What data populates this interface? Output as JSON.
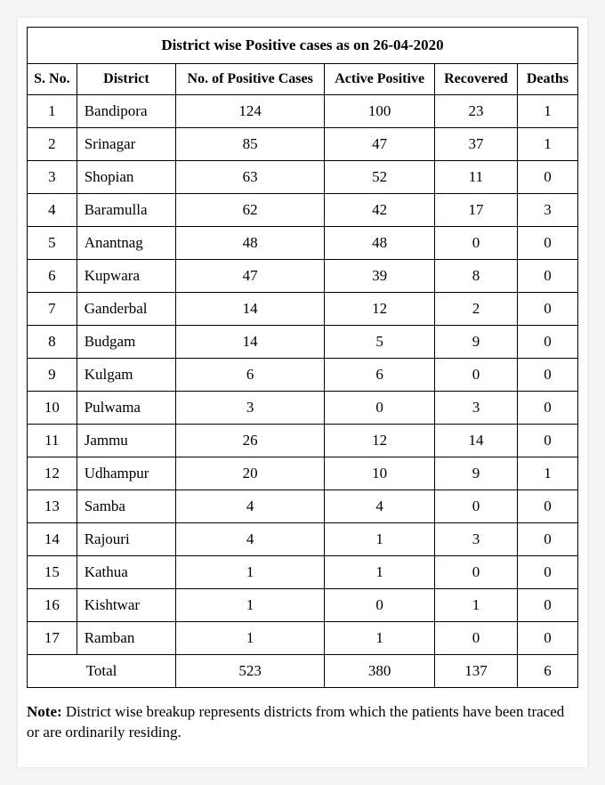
{
  "table": {
    "type": "table",
    "title": "District wise Positive cases as on 26-04-2020",
    "columns": [
      "S. No.",
      "District",
      "No. of Positive Cases",
      "Active Positive",
      "Recovered",
      "Deaths"
    ],
    "column_keys": [
      "sno",
      "district",
      "positive",
      "active",
      "recovered",
      "deaths"
    ],
    "column_widths_pct": [
      9,
      18,
      27,
      20,
      15,
      11
    ],
    "column_align": [
      "center",
      "left",
      "center",
      "center",
      "center",
      "center"
    ],
    "header_fontsize": 16,
    "title_fontsize": 17,
    "cell_fontsize": 17,
    "border_color": "#000000",
    "background_color": "#ffffff",
    "text_color": "#000000",
    "rows": [
      {
        "sno": "1",
        "district": "Bandipora",
        "positive": "124",
        "active": "100",
        "recovered": "23",
        "deaths": "1"
      },
      {
        "sno": "2",
        "district": "Srinagar",
        "positive": "85",
        "active": "47",
        "recovered": "37",
        "deaths": "1"
      },
      {
        "sno": "3",
        "district": "Shopian",
        "positive": "63",
        "active": "52",
        "recovered": "11",
        "deaths": "0"
      },
      {
        "sno": "4",
        "district": "Baramulla",
        "positive": "62",
        "active": "42",
        "recovered": "17",
        "deaths": "3"
      },
      {
        "sno": "5",
        "district": "Anantnag",
        "positive": "48",
        "active": "48",
        "recovered": "0",
        "deaths": "0"
      },
      {
        "sno": "6",
        "district": "Kupwara",
        "positive": "47",
        "active": "39",
        "recovered": "8",
        "deaths": "0"
      },
      {
        "sno": "7",
        "district": "Ganderbal",
        "positive": "14",
        "active": "12",
        "recovered": "2",
        "deaths": "0"
      },
      {
        "sno": "8",
        "district": "Budgam",
        "positive": "14",
        "active": "5",
        "recovered": "9",
        "deaths": "0"
      },
      {
        "sno": "9",
        "district": "Kulgam",
        "positive": "6",
        "active": "6",
        "recovered": "0",
        "deaths": "0"
      },
      {
        "sno": "10",
        "district": "Pulwama",
        "positive": "3",
        "active": "0",
        "recovered": "3",
        "deaths": "0"
      },
      {
        "sno": "11",
        "district": "Jammu",
        "positive": "26",
        "active": "12",
        "recovered": "14",
        "deaths": "0"
      },
      {
        "sno": "12",
        "district": "Udhampur",
        "positive": "20",
        "active": "10",
        "recovered": "9",
        "deaths": "1"
      },
      {
        "sno": "13",
        "district": "Samba",
        "positive": "4",
        "active": "4",
        "recovered": "0",
        "deaths": "0"
      },
      {
        "sno": "14",
        "district": "Rajouri",
        "positive": "4",
        "active": "1",
        "recovered": "3",
        "deaths": "0"
      },
      {
        "sno": "15",
        "district": "Kathua",
        "positive": "1",
        "active": "1",
        "recovered": "0",
        "deaths": "0"
      },
      {
        "sno": "16",
        "district": "Kishtwar",
        "positive": "1",
        "active": "0",
        "recovered": "1",
        "deaths": "0"
      },
      {
        "sno": "17",
        "district": "Ramban",
        "positive": "1",
        "active": "1",
        "recovered": "0",
        "deaths": "0"
      }
    ],
    "total": {
      "label": "Total",
      "positive": "523",
      "active": "380",
      "recovered": "137",
      "deaths": "6"
    }
  },
  "note": {
    "label": "Note:",
    "text": " District wise breakup represents districts from which the patients have been traced or are ordinarily residing."
  }
}
